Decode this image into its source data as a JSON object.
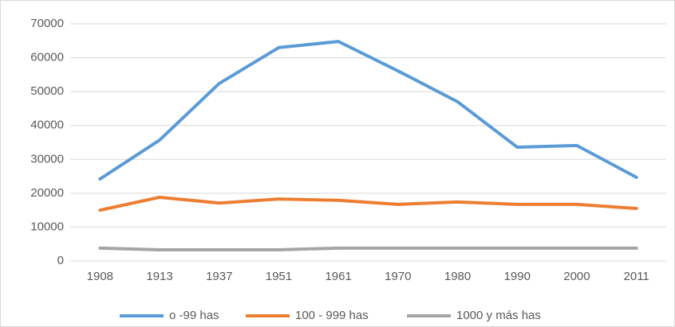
{
  "chart_data": {
    "type": "line",
    "categories": [
      "1908",
      "1913",
      "1937",
      "1951",
      "1961",
      "1970",
      "1980",
      "1990",
      "2000",
      "2011"
    ],
    "series": [
      {
        "name": "o -99 has",
        "color": "#5b9bd5",
        "values": [
          24200,
          35700,
          52400,
          63000,
          64800,
          56100,
          47000,
          33600,
          34100,
          24700
        ]
      },
      {
        "name": "100 - 999 has",
        "color": "#ed7d31",
        "values": [
          15000,
          18800,
          17100,
          18300,
          17900,
          16700,
          17400,
          16700,
          16700,
          15500
        ]
      },
      {
        "name": "1000 y más has",
        "color": "#a5a5a5",
        "values": [
          3800,
          3300,
          3300,
          3300,
          3800,
          3800,
          3800,
          3800,
          3800,
          3800
        ]
      }
    ],
    "ylim": [
      0,
      70000
    ],
    "yticks": [
      0,
      10000,
      20000,
      30000,
      40000,
      50000,
      60000,
      70000
    ],
    "grid": true,
    "legend": "bottom"
  }
}
